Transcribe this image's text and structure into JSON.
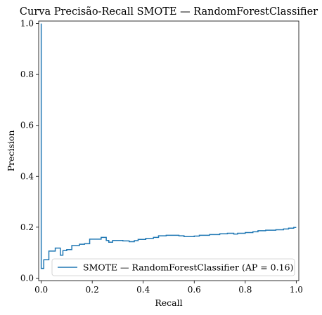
{
  "chart_data": {
    "type": "line",
    "title": "Curva Precisão-Recall SMOTE — RandomForestClassifier",
    "xlabel": "Recall",
    "ylabel": "Precision",
    "xlim": [
      -0.01,
      1.01
    ],
    "ylim": [
      -0.01,
      1.01
    ],
    "xticks": [
      "0.0",
      "0.2",
      "0.4",
      "0.6",
      "0.8",
      "1.0"
    ],
    "yticks": [
      "0.0",
      "0.2",
      "0.4",
      "0.6",
      "0.8",
      "1.0"
    ],
    "grid": false,
    "legend_position": "lower-right",
    "series_color": "#1f77b4",
    "series": [
      {
        "name": "SMOTE — RandomForestClassifier (AP = 0.16)",
        "drawstyle": "steps-post",
        "points": [
          [
            0.0,
            1.0
          ],
          [
            0.0,
            0.038
          ],
          [
            0.01,
            0.038
          ],
          [
            0.01,
            0.072
          ],
          [
            0.03,
            0.072
          ],
          [
            0.03,
            0.106
          ],
          [
            0.055,
            0.106
          ],
          [
            0.055,
            0.118
          ],
          [
            0.075,
            0.118
          ],
          [
            0.075,
            0.09
          ],
          [
            0.085,
            0.09
          ],
          [
            0.085,
            0.108
          ],
          [
            0.1,
            0.108
          ],
          [
            0.1,
            0.112
          ],
          [
            0.12,
            0.112
          ],
          [
            0.12,
            0.128
          ],
          [
            0.15,
            0.128
          ],
          [
            0.15,
            0.133
          ],
          [
            0.17,
            0.133
          ],
          [
            0.17,
            0.135
          ],
          [
            0.19,
            0.135
          ],
          [
            0.19,
            0.153
          ],
          [
            0.235,
            0.153
          ],
          [
            0.235,
            0.16
          ],
          [
            0.255,
            0.16
          ],
          [
            0.255,
            0.148
          ],
          [
            0.265,
            0.148
          ],
          [
            0.265,
            0.141
          ],
          [
            0.28,
            0.141
          ],
          [
            0.28,
            0.148
          ],
          [
            0.32,
            0.148
          ],
          [
            0.32,
            0.146
          ],
          [
            0.345,
            0.146
          ],
          [
            0.345,
            0.143
          ],
          [
            0.365,
            0.143
          ],
          [
            0.365,
            0.147
          ],
          [
            0.38,
            0.147
          ],
          [
            0.38,
            0.152
          ],
          [
            0.41,
            0.152
          ],
          [
            0.41,
            0.156
          ],
          [
            0.44,
            0.156
          ],
          [
            0.44,
            0.16
          ],
          [
            0.46,
            0.16
          ],
          [
            0.46,
            0.166
          ],
          [
            0.49,
            0.166
          ],
          [
            0.49,
            0.168
          ],
          [
            0.54,
            0.168
          ],
          [
            0.54,
            0.166
          ],
          [
            0.56,
            0.166
          ],
          [
            0.56,
            0.163
          ],
          [
            0.6,
            0.163
          ],
          [
            0.6,
            0.165
          ],
          [
            0.62,
            0.165
          ],
          [
            0.62,
            0.168
          ],
          [
            0.66,
            0.168
          ],
          [
            0.66,
            0.171
          ],
          [
            0.7,
            0.171
          ],
          [
            0.7,
            0.174
          ],
          [
            0.73,
            0.174
          ],
          [
            0.73,
            0.176
          ],
          [
            0.755,
            0.176
          ],
          [
            0.755,
            0.173
          ],
          [
            0.77,
            0.173
          ],
          [
            0.77,
            0.176
          ],
          [
            0.8,
            0.176
          ],
          [
            0.8,
            0.179
          ],
          [
            0.83,
            0.179
          ],
          [
            0.83,
            0.182
          ],
          [
            0.85,
            0.182
          ],
          [
            0.85,
            0.186
          ],
          [
            0.88,
            0.186
          ],
          [
            0.88,
            0.188
          ],
          [
            0.92,
            0.188
          ],
          [
            0.92,
            0.19
          ],
          [
            0.95,
            0.19
          ],
          [
            0.95,
            0.193
          ],
          [
            0.97,
            0.193
          ],
          [
            0.97,
            0.196
          ],
          [
            0.99,
            0.196
          ],
          [
            0.99,
            0.199
          ],
          [
            1.0,
            0.199
          ]
        ]
      }
    ]
  }
}
